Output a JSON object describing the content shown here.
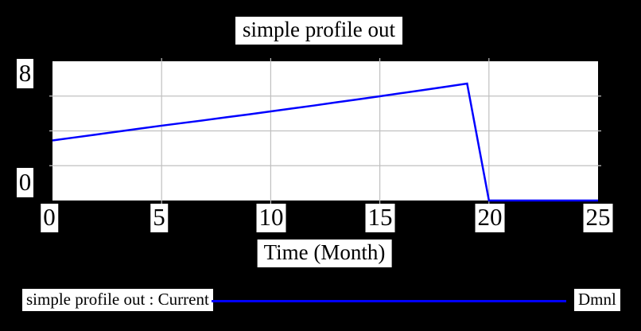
{
  "title": "simple profile out",
  "axes": {
    "y_max": "8",
    "y_min": "0",
    "x_ticks": [
      "0",
      "5",
      "10",
      "15",
      "20",
      "25"
    ],
    "x_title": "Time (Month)"
  },
  "legend": {
    "series_label": "simple profile out : Current",
    "units_label": "Dmnl"
  },
  "colors": {
    "background": "#000000",
    "plot_bg": "#ffffff",
    "gridline": "#c0c0c0",
    "series": "#0000ff",
    "text": "#000000"
  },
  "chart_data": {
    "type": "line",
    "title": "simple profile out",
    "xlabel": "Time (Month)",
    "ylabel": "Dmnl",
    "xlim": [
      0,
      25
    ],
    "ylim": [
      0,
      8
    ],
    "x_tick_values": [
      0,
      5,
      10,
      15,
      20,
      25
    ],
    "y_tick_values": [
      0,
      8
    ],
    "gridlines": {
      "x": [
        5,
        10,
        15,
        20
      ],
      "y": [
        2,
        4,
        6
      ]
    },
    "grid_on": true,
    "legend_position": "bottom",
    "series": [
      {
        "name": "simple profile out : Current",
        "units": "Dmnl",
        "color": "#0000ff",
        "x": [
          0,
          1,
          2,
          3,
          4,
          5,
          6,
          7,
          8,
          9,
          10,
          11,
          12,
          13,
          14,
          15,
          16,
          17,
          18,
          19,
          20,
          21,
          22,
          23,
          24,
          25
        ],
        "y": [
          3.45,
          3.62,
          3.79,
          3.96,
          4.13,
          4.3,
          4.46,
          4.62,
          4.79,
          4.95,
          5.12,
          5.29,
          5.46,
          5.64,
          5.81,
          5.99,
          6.17,
          6.35,
          6.53,
          6.72,
          0,
          0,
          0,
          0,
          0,
          0
        ]
      }
    ]
  }
}
